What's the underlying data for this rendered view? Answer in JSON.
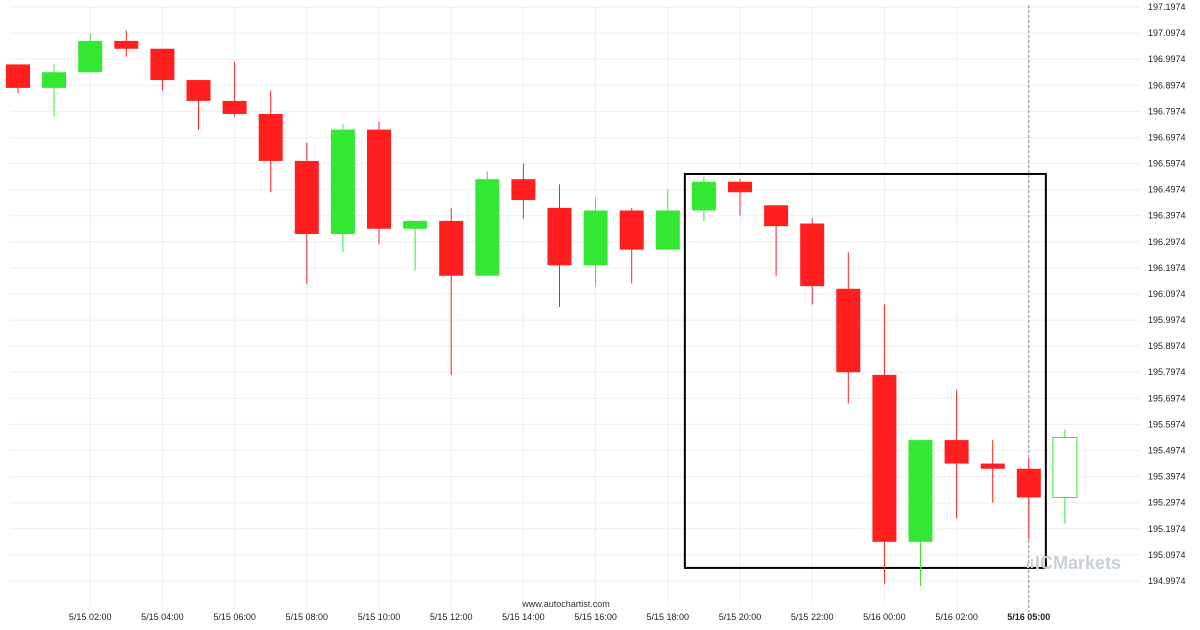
{
  "chart_data": {
    "type": "candlestick",
    "ylim": [
      194.9474,
      197.1974
    ],
    "y_ticks": [
      "197.1974",
      "197.0974",
      "196.9974",
      "196.8974",
      "196.7974",
      "196.6974",
      "196.5974",
      "196.4974",
      "196.3974",
      "196.2974",
      "196.1974",
      "196.0974",
      "195.9974",
      "195.8974",
      "195.7974",
      "195.6974",
      "195.5974",
      "195.4974",
      "195.3974",
      "195.2974",
      "195.1974",
      "195.0974",
      "194.9974"
    ],
    "x_ticks": [
      {
        "label": "5/15 02:00",
        "index": 2,
        "bold": false
      },
      {
        "label": "5/15 04:00",
        "index": 4,
        "bold": false
      },
      {
        "label": "5/15 06:00",
        "index": 6,
        "bold": false
      },
      {
        "label": "5/15 08:00",
        "index": 8,
        "bold": false
      },
      {
        "label": "5/15 10:00",
        "index": 10,
        "bold": false
      },
      {
        "label": "5/15 12:00",
        "index": 12,
        "bold": false
      },
      {
        "label": "5/15 14:00",
        "index": 14,
        "bold": false
      },
      {
        "label": "5/15 16:00",
        "index": 16,
        "bold": false
      },
      {
        "label": "5/15 18:00",
        "index": 18,
        "bold": false
      },
      {
        "label": "5/15 20:00",
        "index": 20,
        "bold": false
      },
      {
        "label": "5/15 22:00",
        "index": 22,
        "bold": false
      },
      {
        "label": "5/16 00:00",
        "index": 24,
        "bold": false
      },
      {
        "label": "5/16 02:00",
        "index": 26,
        "bold": false
      },
      {
        "label": "5/16 05:00",
        "index": 28,
        "bold": true
      }
    ],
    "candles": [
      {
        "o": 196.9774,
        "h": 196.9774,
        "l": 196.8674,
        "c": 196.8874
      },
      {
        "o": 196.8874,
        "h": 196.9774,
        "l": 196.7774,
        "c": 196.9474
      },
      {
        "o": 196.9474,
        "h": 197.0974,
        "l": 196.9474,
        "c": 197.0674
      },
      {
        "o": 197.0674,
        "h": 197.1074,
        "l": 197.0074,
        "c": 197.0374
      },
      {
        "o": 197.0374,
        "h": 197.0374,
        "l": 196.8774,
        "c": 196.9174
      },
      {
        "o": 196.9174,
        "h": 196.9174,
        "l": 196.7274,
        "c": 196.8374
      },
      {
        "o": 196.8374,
        "h": 196.9874,
        "l": 196.7774,
        "c": 196.7874
      },
      {
        "o": 196.7874,
        "h": 196.8774,
        "l": 196.4874,
        "c": 196.6074
      },
      {
        "o": 196.6074,
        "h": 196.6774,
        "l": 196.1374,
        "c": 196.3274
      },
      {
        "o": 196.3274,
        "h": 196.7474,
        "l": 196.2574,
        "c": 196.7274
      },
      {
        "o": 196.7274,
        "h": 196.7574,
        "l": 196.2874,
        "c": 196.3474
      },
      {
        "o": 196.3474,
        "h": 196.3774,
        "l": 196.1874,
        "c": 196.3774
      },
      {
        "o": 196.3774,
        "h": 196.4274,
        "l": 195.7874,
        "c": 196.1674
      },
      {
        "o": 196.1674,
        "h": 196.5674,
        "l": 196.1674,
        "c": 196.5374
      },
      {
        "o": 196.5374,
        "h": 196.5974,
        "l": 196.3874,
        "c": 196.4574
      },
      {
        "o": 196.4274,
        "h": 196.5174,
        "l": 196.0474,
        "c": 196.2074
      },
      {
        "o": 196.2074,
        "h": 196.4674,
        "l": 196.1274,
        "c": 196.4174
      },
      {
        "o": 196.4174,
        "h": 196.4274,
        "l": 196.1374,
        "c": 196.2674
      },
      {
        "o": 196.2674,
        "h": 196.4974,
        "l": 196.2674,
        "c": 196.4174
      },
      {
        "o": 196.4174,
        "h": 196.5474,
        "l": 196.3774,
        "c": 196.5274
      },
      {
        "o": 196.5274,
        "h": 196.5374,
        "l": 196.3974,
        "c": 196.4874
      },
      {
        "o": 196.4374,
        "h": 196.4374,
        "l": 196.1674,
        "c": 196.3574
      },
      {
        "o": 196.3674,
        "h": 196.3874,
        "l": 196.0574,
        "c": 196.1274
      },
      {
        "o": 196.1174,
        "h": 196.2574,
        "l": 195.6774,
        "c": 195.7974
      },
      {
        "o": 195.7874,
        "h": 196.0574,
        "l": 194.9874,
        "c": 195.1474
      },
      {
        "o": 195.1474,
        "h": 195.5374,
        "l": 194.9774,
        "c": 195.5374
      },
      {
        "o": 195.5374,
        "h": 195.7274,
        "l": 195.2374,
        "c": 195.4474
      },
      {
        "o": 195.4474,
        "h": 195.5374,
        "l": 195.2974,
        "c": 195.4274
      },
      {
        "o": 195.4274,
        "h": 195.4674,
        "l": 195.1574,
        "c": 195.3174
      },
      {
        "o": 195.3174,
        "h": 195.5774,
        "l": 195.2174,
        "c": 195.5474,
        "hollow": true
      }
    ],
    "highlight_box": {
      "from_index": 19,
      "to_index": 28,
      "price_top": 196.5574,
      "price_bottom": 195.0474
    },
    "current_marker_index": 28
  },
  "colors": {
    "bull": "#33e833",
    "bear": "#ff1f1f",
    "grid": "#eeeeee",
    "box": "#000000",
    "marker": "#888888"
  },
  "watermark": "www.autochartist.com",
  "brand": "ICMarkets"
}
